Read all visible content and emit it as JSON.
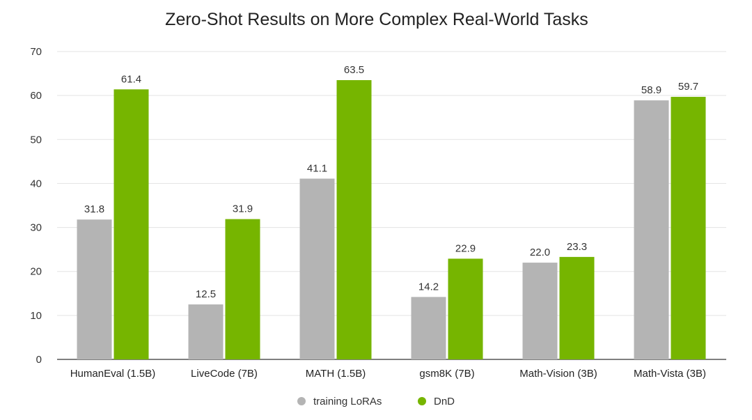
{
  "chart_data": {
    "type": "bar",
    "title": "Zero-Shot Results on More Complex Real-World Tasks",
    "xlabel": "",
    "ylabel": "",
    "ylim": [
      0,
      70
    ],
    "yticks": [
      0,
      10,
      20,
      30,
      40,
      50,
      60,
      70
    ],
    "grid": true,
    "legend_position": "bottom",
    "categories": [
      "HumanEval (1.5B)",
      "LiveCode (7B)",
      "MATH (1.5B)",
      "gsm8K (7B)",
      "Math-Vision (3B)",
      "Math-Vista (3B)"
    ],
    "series": [
      {
        "name": "training LoRAs",
        "color": "#b4b4b4",
        "values": [
          31.8,
          12.5,
          41.1,
          14.2,
          22.0,
          58.9
        ],
        "labels": [
          "31.8",
          "12.5",
          "41.1",
          "14.2",
          "22.0",
          "58.9"
        ]
      },
      {
        "name": "DnD",
        "color": "#76b500",
        "values": [
          61.4,
          31.9,
          63.5,
          22.9,
          23.3,
          59.7
        ],
        "labels": [
          "61.4",
          "31.9",
          "63.5",
          "22.9",
          "23.3",
          "59.7"
        ]
      }
    ]
  }
}
